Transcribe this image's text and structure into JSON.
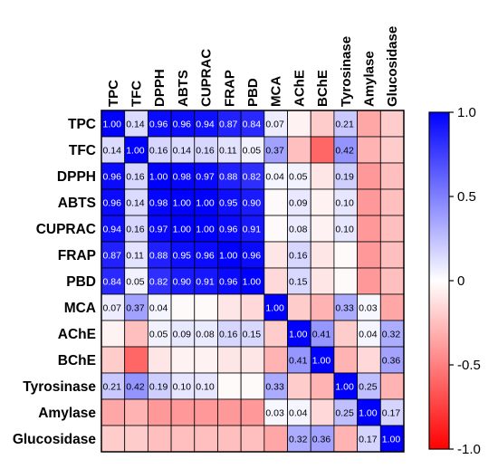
{
  "chart_data": {
    "type": "heatmap",
    "variables": [
      "TPC",
      "TFC",
      "DPPH",
      "ABTS",
      "CUPRAC",
      "FRAP",
      "PBD",
      "MCA",
      "AChE",
      "BChE",
      "Tyrosinase",
      "Amylase",
      "Glucosidase"
    ],
    "values": [
      [
        1.0,
        0.14,
        0.96,
        0.96,
        0.94,
        0.87,
        0.84,
        0.07,
        -0.05,
        -0.2,
        0.21,
        -0.35,
        -0.2
      ],
      [
        0.14,
        1.0,
        0.16,
        0.14,
        0.16,
        0.11,
        0.05,
        0.37,
        -0.25,
        -0.6,
        0.42,
        -0.3,
        -0.2
      ],
      [
        0.96,
        0.16,
        1.0,
        0.98,
        0.97,
        0.88,
        0.82,
        0.04,
        0.05,
        -0.1,
        0.19,
        -0.4,
        -0.25
      ],
      [
        0.96,
        0.14,
        0.98,
        1.0,
        1.0,
        0.95,
        0.9,
        -0.02,
        0.09,
        -0.05,
        0.1,
        -0.4,
        -0.25
      ],
      [
        0.94,
        0.16,
        0.97,
        1.0,
        1.0,
        0.96,
        0.91,
        -0.02,
        0.08,
        -0.05,
        0.1,
        -0.4,
        -0.25
      ],
      [
        0.87,
        0.11,
        0.88,
        0.95,
        0.96,
        1.0,
        0.96,
        -0.1,
        0.16,
        -0.1,
        -0.02,
        -0.4,
        -0.25
      ],
      [
        0.84,
        0.05,
        0.82,
        0.9,
        0.91,
        0.96,
        1.0,
        -0.15,
        0.15,
        -0.1,
        -0.02,
        -0.4,
        -0.25
      ],
      [
        0.07,
        0.37,
        0.04,
        -0.02,
        -0.02,
        -0.1,
        -0.15,
        1.0,
        -0.2,
        -0.3,
        0.33,
        0.03,
        -0.35
      ],
      [
        -0.05,
        -0.25,
        0.05,
        0.09,
        0.08,
        0.16,
        0.15,
        -0.2,
        1.0,
        0.41,
        -0.2,
        0.04,
        0.32
      ],
      [
        -0.2,
        -0.6,
        -0.1,
        -0.05,
        -0.05,
        -0.1,
        -0.1,
        -0.3,
        0.41,
        1.0,
        -0.3,
        -0.15,
        0.36
      ],
      [
        0.21,
        0.42,
        0.19,
        0.1,
        0.1,
        -0.02,
        -0.02,
        0.33,
        -0.2,
        -0.3,
        1.0,
        0.25,
        -0.3
      ],
      [
        -0.35,
        -0.3,
        -0.4,
        -0.4,
        -0.4,
        -0.4,
        -0.4,
        0.03,
        0.04,
        -0.15,
        0.25,
        1.0,
        0.17
      ],
      [
        -0.2,
        -0.2,
        -0.25,
        -0.25,
        -0.25,
        -0.25,
        -0.25,
        -0.35,
        0.32,
        0.36,
        -0.3,
        0.17,
        1.0
      ]
    ],
    "cell_labels": [
      [
        "1.00",
        "0.14",
        "0.96",
        "0.96",
        "0.94",
        "0.87",
        "0.84",
        "0.07",
        "",
        "",
        "0.21",
        "",
        ""
      ],
      [
        "0.14",
        "1.00",
        "0.16",
        "0.14",
        "0.16",
        "0.11",
        "0.05",
        "0.37",
        "",
        "",
        "0.42",
        "",
        ""
      ],
      [
        "0.96",
        "0.16",
        "1.00",
        "0.98",
        "0.97",
        "0.88",
        "0.82",
        "0.04",
        "0.05",
        "",
        "0.19",
        "",
        ""
      ],
      [
        "0.96",
        "0.14",
        "0.98",
        "1.00",
        "1.00",
        "0.95",
        "0.90",
        "",
        "0.09",
        "",
        "0.10",
        "",
        ""
      ],
      [
        "0.94",
        "0.16",
        "0.97",
        "1.00",
        "1.00",
        "0.96",
        "0.91",
        "",
        "0.08",
        "",
        "0.10",
        "",
        ""
      ],
      [
        "0.87",
        "0.11",
        "0.88",
        "0.95",
        "0.96",
        "1.00",
        "0.96",
        "",
        "0.16",
        "",
        "",
        "",
        ""
      ],
      [
        "0.84",
        "0.05",
        "0.82",
        "0.90",
        "0.91",
        "0.96",
        "1.00",
        "",
        "0.15",
        "",
        "",
        "",
        ""
      ],
      [
        "0.07",
        "0.37",
        "0.04",
        "",
        "",
        "",
        "",
        "1.00",
        "",
        "",
        "0.33",
        "0.03",
        ""
      ],
      [
        "",
        "",
        "0.05",
        "0.09",
        "0.08",
        "0.16",
        "0.15",
        "",
        "1.00",
        "0.41",
        "",
        "0.04",
        "0.32"
      ],
      [
        "",
        "",
        "",
        "",
        "",
        "",
        "",
        "",
        "0.41",
        "1.00",
        "",
        "",
        "0.36"
      ],
      [
        "0.21",
        "0.42",
        "0.19",
        "0.10",
        "0.10",
        "",
        "",
        "0.33",
        "",
        "",
        "1.00",
        "0.25",
        ""
      ],
      [
        "",
        "",
        "",
        "",
        "",
        "",
        "",
        "0.03",
        "0.04",
        "",
        "0.25",
        "1.00",
        "0.17"
      ],
      [
        "",
        "",
        "",
        "",
        "",
        "",
        "",
        "",
        "0.32",
        "0.36",
        "",
        "0.17",
        "1.00"
      ]
    ],
    "colorbar": {
      "ticks": [
        "1.0",
        "0.5",
        "0",
        "-0.5",
        "-1.0"
      ],
      "tick_values": [
        1.0,
        0.5,
        0,
        -0.5,
        -1.0
      ],
      "range": [
        -1.0,
        1.0
      ],
      "colors": {
        "high": "#0000ff",
        "mid": "#ffffff",
        "low": "#ff0000"
      }
    }
  }
}
